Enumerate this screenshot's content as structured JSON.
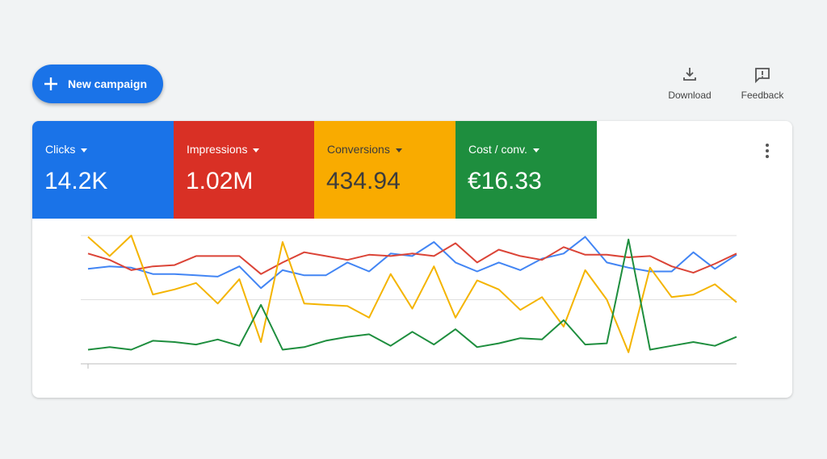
{
  "header": {
    "new_campaign": "New campaign",
    "download": "Download",
    "feedback": "Feedback"
  },
  "metrics": [
    {
      "name": "Clicks",
      "value": "14.2K"
    },
    {
      "name": "Impressions",
      "value": "1.02M"
    },
    {
      "name": "Conversions",
      "value": "434.94"
    },
    {
      "name": "Cost / conv.",
      "value": "€16.33"
    }
  ],
  "chart_data": {
    "type": "line",
    "ylim": [
      0,
      100
    ],
    "yticks": [
      0,
      50,
      100
    ],
    "grid": true,
    "series": [
      {
        "color": "#4285f4",
        "values": [
          74,
          76,
          75,
          70,
          70,
          69,
          68,
          76,
          59,
          73,
          69,
          69,
          79,
          72,
          86,
          84,
          95,
          79,
          72,
          79,
          73,
          82,
          86,
          99,
          79,
          75,
          72,
          72,
          87,
          74,
          85
        ]
      },
      {
        "color": "#db4437",
        "values": [
          86,
          81,
          73,
          76,
          77,
          84,
          84,
          84,
          70,
          79,
          87,
          84,
          81,
          85,
          84,
          86,
          84,
          94,
          79,
          89,
          84,
          81,
          91,
          85,
          85,
          83,
          84,
          76,
          71,
          78,
          86
        ]
      },
      {
        "color": "#f4b400",
        "values": [
          99,
          84,
          100,
          54,
          58,
          63,
          47,
          66,
          17,
          95,
          47,
          46,
          45,
          36,
          70,
          43,
          76,
          36,
          65,
          58,
          42,
          52,
          29,
          73,
          50,
          9,
          75,
          52,
          54,
          62,
          48
        ]
      },
      {
        "color": "#1e8e3e",
        "values": [
          11,
          13,
          11,
          18,
          17,
          15,
          19,
          14,
          46,
          11,
          13,
          18,
          21,
          23,
          14,
          25,
          15,
          27,
          13,
          16,
          20,
          19,
          34,
          15,
          16,
          97,
          11,
          14,
          17,
          14,
          21
        ]
      }
    ]
  }
}
